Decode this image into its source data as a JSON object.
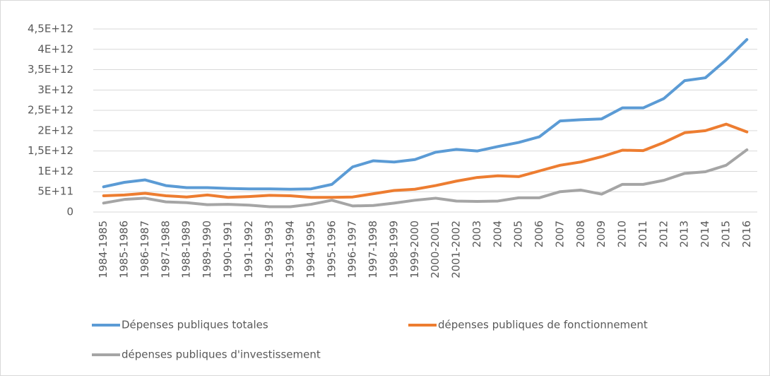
{
  "chart_data": {
    "type": "line",
    "categories": [
      "1984-1985",
      "1985-1986",
      "1986-1987",
      "1987-1988",
      "1988-1989",
      "1989-1990",
      "1990-1991",
      "1991-1992",
      "1992-1993",
      "1993-1994",
      "1994-1995",
      "1995-1996",
      "1996-1997",
      "1997-1998",
      "1998-1999",
      "1999-2000",
      "2000-2001",
      "2001-2002",
      "2003",
      "2004",
      "2005",
      "2006",
      "2007",
      "2008",
      "2009",
      "2010",
      "2011",
      "2012",
      "2013",
      "2014",
      "2015",
      "2016"
    ],
    "series": [
      {
        "name": "Dépenses publiques totales",
        "color": "#5b9bd5",
        "values": [
          620000000000.0,
          730000000000.0,
          790000000000.0,
          650000000000.0,
          600000000000.0,
          600000000000.0,
          580000000000.0,
          570000000000.0,
          570000000000.0,
          560000000000.0,
          570000000000.0,
          680000000000.0,
          1110000000000.0,
          1260000000000.0,
          1230000000000.0,
          1290000000000.0,
          1470000000000.0,
          1540000000000.0,
          1500000000000.0,
          1610000000000.0,
          1710000000000.0,
          1850000000000.0,
          2240000000000.0,
          2270000000000.0,
          2290000000000.0,
          2560000000000.0,
          2560000000000.0,
          2790000000000.0,
          3230000000000.0,
          3300000000000.0,
          3740000000000.0,
          4240000000000.0
        ]
      },
      {
        "name": "dépenses publiques de fonctionnement",
        "color": "#ed7d31",
        "values": [
          400000000000.0,
          420000000000.0,
          460000000000.0,
          400000000000.0,
          370000000000.0,
          420000000000.0,
          360000000000.0,
          380000000000.0,
          410000000000.0,
          400000000000.0,
          360000000000.0,
          360000000000.0,
          370000000000.0,
          450000000000.0,
          530000000000.0,
          560000000000.0,
          650000000000.0,
          760000000000.0,
          850000000000.0,
          890000000000.0,
          870000000000.0,
          1010000000000.0,
          1150000000000.0,
          1230000000000.0,
          1360000000000.0,
          1520000000000.0,
          1510000000000.0,
          1710000000000.0,
          1950000000000.0,
          2000000000000.0,
          2160000000000.0,
          1970000000000.0
        ]
      },
      {
        "name": "dépenses publiques d'investissement",
        "color": "#a5a5a5",
        "values": [
          220000000000.0,
          310000000000.0,
          340000000000.0,
          250000000000.0,
          230000000000.0,
          180000000000.0,
          190000000000.0,
          170000000000.0,
          130000000000.0,
          130000000000.0,
          190000000000.0,
          290000000000.0,
          150000000000.0,
          160000000000.0,
          220000000000.0,
          290000000000.0,
          340000000000.0,
          270000000000.0,
          260000000000.0,
          270000000000.0,
          350000000000.0,
          350000000000.0,
          500000000000.0,
          540000000000.0,
          440000000000.0,
          680000000000.0,
          680000000000.0,
          780000000000.0,
          950000000000.0,
          990000000000.0,
          1150000000000.0,
          1530000000000.0
        ]
      }
    ],
    "ylim": [
      0,
      4500000000000.0
    ],
    "yticks": [
      0,
      {
        "value": 500000000000.0,
        "label": "5E+11"
      },
      {
        "value": 1000000000000.0,
        "label": "1E+12"
      },
      {
        "value": 1500000000000.0,
        "label": "1,5E+12"
      },
      {
        "value": 2000000000000.0,
        "label": "2E+12"
      },
      {
        "value": 2500000000000.0,
        "label": "2,5E+12"
      },
      {
        "value": 3000000000000.0,
        "label": "3E+12"
      },
      {
        "value": 3500000000000.0,
        "label": "3,5E+12"
      },
      {
        "value": 4000000000000.0,
        "label": "4E+12"
      },
      {
        "value": 4500000000000.0,
        "label": "4,5E+12"
      }
    ],
    "grid": true
  }
}
